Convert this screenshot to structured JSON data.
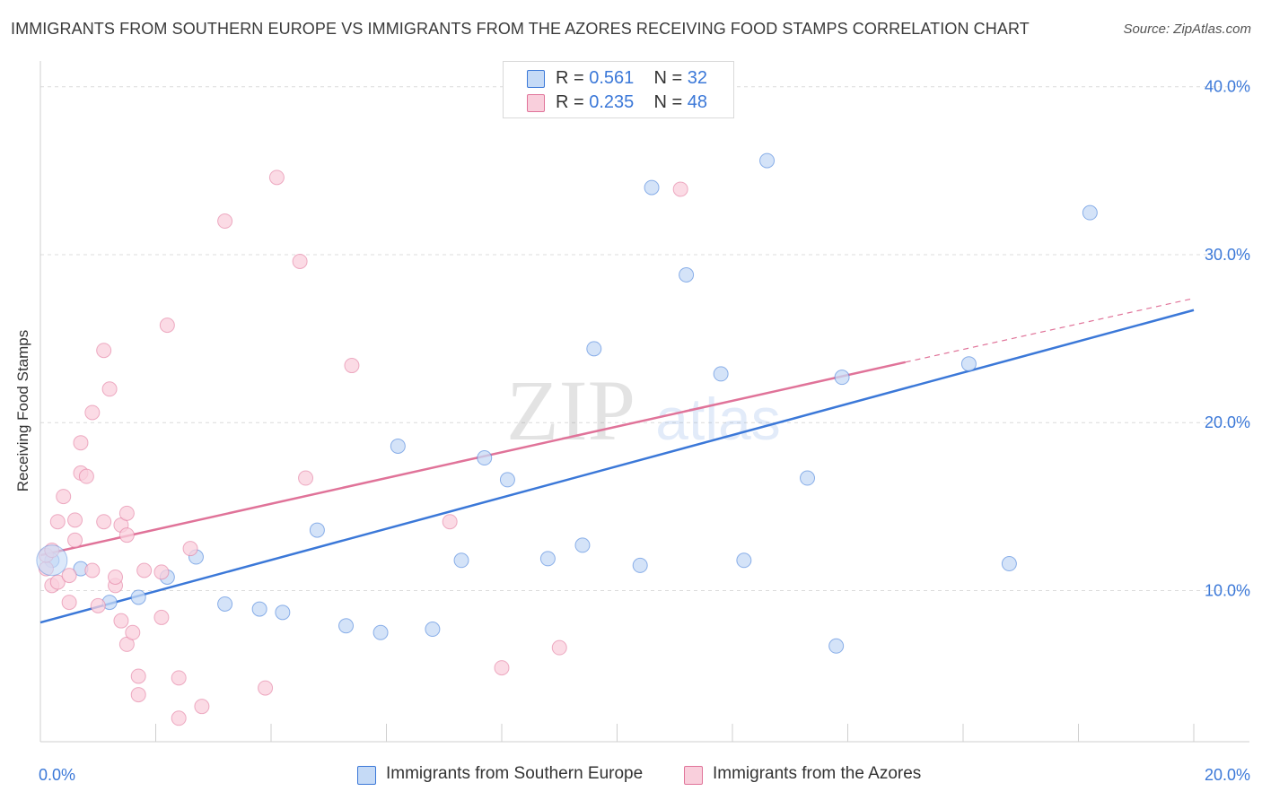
{
  "header": {
    "title": "IMMIGRANTS FROM SOUTHERN EUROPE VS IMMIGRANTS FROM THE AZORES RECEIVING FOOD STAMPS CORRELATION CHART",
    "source": "Source: ZipAtlas.com"
  },
  "legend": {
    "rows": [
      {
        "r_label": "R =",
        "r_value": "0.561",
        "n_label": "N =",
        "n_value": "32",
        "color": "#b8d1f3"
      },
      {
        "r_label": "R =",
        "r_value": "0.235",
        "n_label": "N =",
        "n_value": "48",
        "color": "#f7c4d4"
      }
    ]
  },
  "bottom_legend": {
    "items": [
      {
        "label": "Immigrants from Southern Europe",
        "color": "#b8d1f3"
      },
      {
        "label": "Immigrants from the Azores",
        "color": "#f7c4d4"
      }
    ]
  },
  "watermark": {
    "zip": "ZIP",
    "atlas": "atlas"
  },
  "chart_data": {
    "type": "scatter",
    "ylabel": "Receiving Food Stamps",
    "xlabel": "",
    "xlim": [
      0,
      20
    ],
    "ylim": [
      1,
      41
    ],
    "x_tick_labels": [
      {
        "value": 0,
        "label": "0.0%"
      },
      {
        "value": 20,
        "label": "20.0%"
      }
    ],
    "y_tick_labels": [
      {
        "value": 10,
        "label": "10.0%"
      },
      {
        "value": 20,
        "label": "20.0%"
      },
      {
        "value": 30,
        "label": "30.0%"
      },
      {
        "value": 40,
        "label": "40.0%"
      }
    ],
    "grid": true,
    "series": [
      {
        "name": "Immigrants from Southern Europe",
        "color": "#3b78d8",
        "fill": "#c5daf6",
        "points": [
          [
            0.2,
            11.8
          ],
          [
            0.7,
            11.3
          ],
          [
            1.2,
            9.3
          ],
          [
            1.7,
            9.6
          ],
          [
            2.2,
            10.8
          ],
          [
            2.7,
            12.0
          ],
          [
            3.2,
            9.2
          ],
          [
            3.8,
            8.9
          ],
          [
            4.2,
            8.7
          ],
          [
            4.8,
            13.6
          ],
          [
            5.3,
            7.9
          ],
          [
            5.9,
            7.5
          ],
          [
            6.2,
            18.6
          ],
          [
            6.8,
            7.7
          ],
          [
            7.3,
            11.8
          ],
          [
            7.7,
            17.9
          ],
          [
            8.1,
            16.6
          ],
          [
            8.8,
            11.9
          ],
          [
            9.4,
            12.7
          ],
          [
            9.6,
            24.4
          ],
          [
            10.4,
            11.5
          ],
          [
            10.6,
            34.0
          ],
          [
            11.2,
            28.8
          ],
          [
            11.8,
            22.9
          ],
          [
            12.2,
            11.8
          ],
          [
            12.6,
            35.6
          ],
          [
            13.3,
            16.7
          ],
          [
            13.8,
            6.7
          ],
          [
            13.9,
            22.7
          ],
          [
            16.1,
            23.5
          ],
          [
            16.8,
            11.6
          ],
          [
            18.2,
            32.5
          ]
        ],
        "trend": {
          "x0": 0,
          "y0": 8.1,
          "x1": 20,
          "y1": 26.7
        }
      },
      {
        "name": "Immigrants from the Azores",
        "color": "#e07399",
        "fill": "#f9cfdc",
        "points": [
          [
            0.1,
            11.3
          ],
          [
            0.1,
            12.1
          ],
          [
            0.2,
            10.3
          ],
          [
            0.2,
            12.4
          ],
          [
            0.3,
            10.5
          ],
          [
            0.3,
            14.1
          ],
          [
            0.4,
            15.6
          ],
          [
            0.5,
            9.3
          ],
          [
            0.5,
            10.9
          ],
          [
            0.6,
            14.2
          ],
          [
            0.6,
            13.0
          ],
          [
            0.7,
            18.8
          ],
          [
            0.7,
            17.0
          ],
          [
            0.8,
            16.8
          ],
          [
            0.9,
            20.6
          ],
          [
            0.9,
            11.2
          ],
          [
            1.0,
            9.1
          ],
          [
            1.1,
            24.3
          ],
          [
            1.1,
            14.1
          ],
          [
            1.2,
            22.0
          ],
          [
            1.3,
            10.3
          ],
          [
            1.3,
            10.8
          ],
          [
            1.4,
            8.2
          ],
          [
            1.4,
            13.9
          ],
          [
            1.5,
            13.3
          ],
          [
            1.5,
            14.6
          ],
          [
            1.5,
            6.8
          ],
          [
            1.6,
            7.5
          ],
          [
            1.7,
            4.9
          ],
          [
            1.7,
            3.8
          ],
          [
            1.8,
            11.2
          ],
          [
            2.1,
            8.4
          ],
          [
            2.1,
            11.1
          ],
          [
            2.2,
            25.8
          ],
          [
            2.4,
            2.4
          ],
          [
            2.4,
            4.8
          ],
          [
            2.6,
            12.5
          ],
          [
            2.8,
            3.1
          ],
          [
            3.2,
            32.0
          ],
          [
            3.9,
            4.2
          ],
          [
            4.1,
            34.6
          ],
          [
            4.5,
            29.6
          ],
          [
            4.6,
            16.7
          ],
          [
            5.4,
            23.4
          ],
          [
            7.1,
            14.1
          ],
          [
            8.0,
            5.4
          ],
          [
            9.0,
            6.6
          ],
          [
            11.1,
            33.9
          ]
        ],
        "trend": {
          "x0": 0,
          "y0": 12.1,
          "x1": 15,
          "y1": 23.6,
          "dash_to_x": 20,
          "dash_to_y": 27.4
        }
      }
    ]
  }
}
